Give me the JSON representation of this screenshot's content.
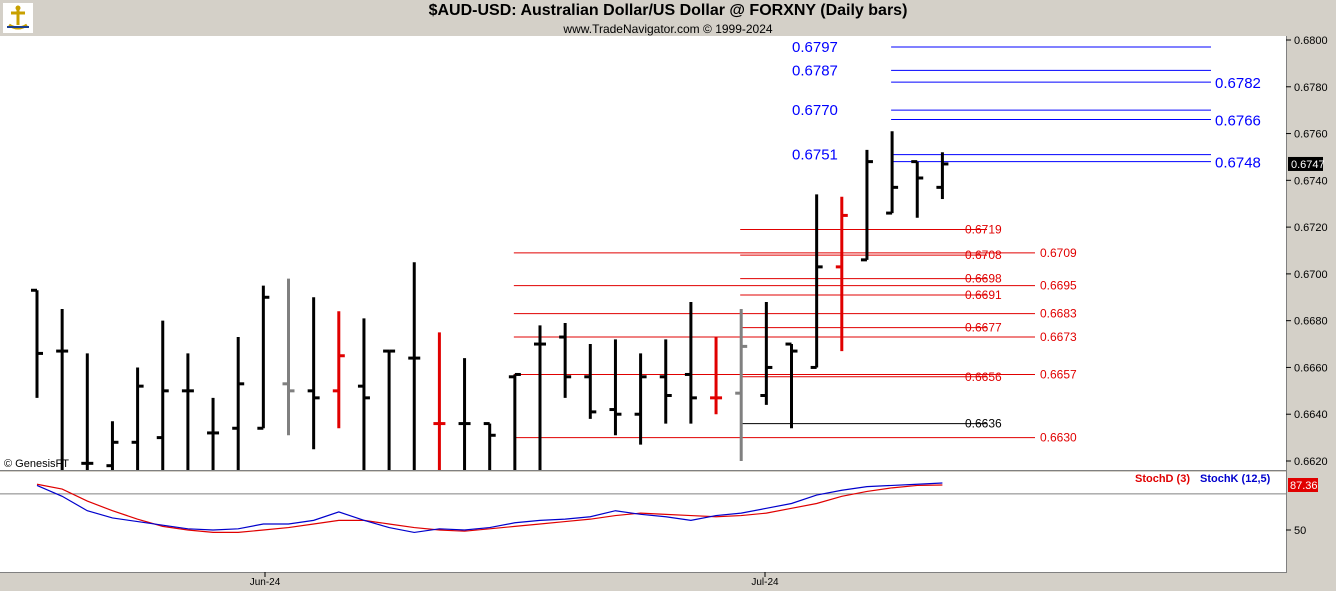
{
  "header": {
    "title": "$AUD-USD:  Australian Dollar/US Dollar @ FORXNY  (Daily bars)",
    "subtitle": "www.TradeNavigator.com © 1999-2024"
  },
  "watermark": "© GenesisFT",
  "logo_icon": "trade-navigator-logo-icon",
  "chart_data": [
    {
      "type": "ohlc",
      "panel": "price",
      "ylim": [
        0.6615,
        0.6805
      ],
      "y_ticks": [
        "0.6800",
        "0.6780",
        "0.6760",
        "0.6740",
        "0.6720",
        "0.6700",
        "0.6680",
        "0.6660",
        "0.6640",
        "0.6620"
      ],
      "x_tick_labels": [
        "Jun-24",
        "Jul-24"
      ],
      "last_price": "0.6747",
      "bars": [
        {
          "o": 0.6693,
          "h": 0.6693,
          "l": 0.6647,
          "c": 0.6666,
          "color": "#000000"
        },
        {
          "o": 0.6667,
          "h": 0.6685,
          "l": 0.6615,
          "c": 0.6667,
          "color": "#000000"
        },
        {
          "o": 0.6619,
          "h": 0.6666,
          "l": 0.6615,
          "c": 0.6619,
          "color": "#000000"
        },
        {
          "o": 0.6618,
          "h": 0.6637,
          "l": 0.6615,
          "c": 0.6628,
          "color": "#000000"
        },
        {
          "o": 0.6628,
          "h": 0.666,
          "l": 0.6615,
          "c": 0.6652,
          "color": "#000000"
        },
        {
          "o": 0.663,
          "h": 0.668,
          "l": 0.6615,
          "c": 0.665,
          "color": "#000000"
        },
        {
          "o": 0.665,
          "h": 0.6666,
          "l": 0.6615,
          "c": 0.665,
          "color": "#000000"
        },
        {
          "o": 0.6632,
          "h": 0.6647,
          "l": 0.6615,
          "c": 0.6632,
          "color": "#000000"
        },
        {
          "o": 0.6634,
          "h": 0.6673,
          "l": 0.6615,
          "c": 0.6653,
          "color": "#000000"
        },
        {
          "o": 0.6634,
          "h": 0.6695,
          "l": 0.6634,
          "c": 0.669,
          "color": "#000000"
        },
        {
          "o": 0.6653,
          "h": 0.6698,
          "l": 0.6631,
          "c": 0.665,
          "color": "#808080"
        },
        {
          "o": 0.665,
          "h": 0.669,
          "l": 0.6625,
          "c": 0.6647,
          "color": "#000000"
        },
        {
          "o": 0.665,
          "h": 0.6684,
          "l": 0.6634,
          "c": 0.6665,
          "color": "#e00000"
        },
        {
          "o": 0.6652,
          "h": 0.6681,
          "l": 0.6615,
          "c": 0.6647,
          "color": "#000000"
        },
        {
          "o": 0.6667,
          "h": 0.6667,
          "l": 0.6615,
          "c": 0.6667,
          "color": "#000000"
        },
        {
          "o": 0.6664,
          "h": 0.6705,
          "l": 0.6615,
          "c": 0.6664,
          "color": "#000000"
        },
        {
          "o": 0.6636,
          "h": 0.6675,
          "l": 0.6615,
          "c": 0.6636,
          "color": "#e00000"
        },
        {
          "o": 0.6636,
          "h": 0.6664,
          "l": 0.6615,
          "c": 0.6636,
          "color": "#000000"
        },
        {
          "o": 0.6636,
          "h": 0.6636,
          "l": 0.6615,
          "c": 0.6631,
          "color": "#000000"
        },
        {
          "o": 0.6656,
          "h": 0.6657,
          "l": 0.6615,
          "c": 0.6657,
          "color": "#000000"
        },
        {
          "o": 0.667,
          "h": 0.6678,
          "l": 0.6615,
          "c": 0.667,
          "color": "#000000"
        },
        {
          "o": 0.6673,
          "h": 0.6679,
          "l": 0.6647,
          "c": 0.6656,
          "color": "#000000"
        },
        {
          "o": 0.6656,
          "h": 0.667,
          "l": 0.6638,
          "c": 0.6641,
          "color": "#000000"
        },
        {
          "o": 0.6642,
          "h": 0.6672,
          "l": 0.6631,
          "c": 0.664,
          "color": "#000000"
        },
        {
          "o": 0.664,
          "h": 0.6666,
          "l": 0.6627,
          "c": 0.6656,
          "color": "#000000"
        },
        {
          "o": 0.6656,
          "h": 0.6672,
          "l": 0.6636,
          "c": 0.6648,
          "color": "#000000"
        },
        {
          "o": 0.6657,
          "h": 0.6688,
          "l": 0.6636,
          "c": 0.6647,
          "color": "#000000"
        },
        {
          "o": 0.6647,
          "h": 0.6673,
          "l": 0.664,
          "c": 0.6647,
          "color": "#e00000"
        },
        {
          "o": 0.6649,
          "h": 0.6685,
          "l": 0.662,
          "c": 0.6669,
          "color": "#808080"
        },
        {
          "o": 0.6648,
          "h": 0.6688,
          "l": 0.6644,
          "c": 0.666,
          "color": "#000000"
        },
        {
          "o": 0.667,
          "h": 0.667,
          "l": 0.6634,
          "c": 0.6667,
          "color": "#000000"
        },
        {
          "o": 0.666,
          "h": 0.6734,
          "l": 0.666,
          "c": 0.6703,
          "color": "#000000"
        },
        {
          "o": 0.6703,
          "h": 0.6733,
          "l": 0.6667,
          "c": 0.6725,
          "color": "#e00000"
        },
        {
          "o": 0.6706,
          "h": 0.6753,
          "l": 0.6706,
          "c": 0.6748,
          "color": "#000000"
        },
        {
          "o": 0.6726,
          "h": 0.6761,
          "l": 0.6726,
          "c": 0.6737,
          "color": "#000000"
        },
        {
          "o": 0.6748,
          "h": 0.6748,
          "l": 0.6724,
          "c": 0.6741,
          "color": "#000000"
        },
        {
          "o": 0.6737,
          "h": 0.6752,
          "l": 0.6732,
          "c": 0.6747,
          "color": "#000000"
        }
      ],
      "levels": [
        {
          "label": "0.6797",
          "value": 0.6797,
          "color": "#0000ff",
          "big": true,
          "side": "left",
          "start": 34
        },
        {
          "label": "0.6787",
          "value": 0.6787,
          "color": "#0000ff",
          "big": true,
          "side": "left",
          "start": 34
        },
        {
          "label": "0.6782",
          "value": 0.6782,
          "color": "#0000ff",
          "big": true,
          "side": "right",
          "start": 34
        },
        {
          "label": "0.6770",
          "value": 0.677,
          "color": "#0000ff",
          "big": true,
          "side": "left",
          "start": 34
        },
        {
          "label": "0.6766",
          "value": 0.6766,
          "color": "#0000ff",
          "big": true,
          "side": "right",
          "start": 34
        },
        {
          "label": "0.6751",
          "value": 0.6751,
          "color": "#0000ff",
          "big": true,
          "side": "left",
          "start": 34
        },
        {
          "label": "0.6748",
          "value": 0.6748,
          "color": "#0000ff",
          "big": true,
          "side": "right",
          "start": 34
        },
        {
          "label": "0.6719",
          "value": 0.6719,
          "color": "#e00000",
          "big": false,
          "side": "mid",
          "start": 28
        },
        {
          "label": "0.6708",
          "value": 0.6708,
          "color": "#e00000",
          "big": false,
          "side": "mid",
          "start": 28
        },
        {
          "label": "0.6709",
          "value": 0.6709,
          "color": "#e00000",
          "big": false,
          "side": "end",
          "start": 19
        },
        {
          "label": "0.6698",
          "value": 0.6698,
          "color": "#e00000",
          "big": false,
          "side": "mid",
          "start": 28
        },
        {
          "label": "0.6695",
          "value": 0.6695,
          "color": "#e00000",
          "big": false,
          "side": "end",
          "start": 19
        },
        {
          "label": "0.6691",
          "value": 0.6691,
          "color": "#e00000",
          "big": false,
          "side": "mid",
          "start": 28
        },
        {
          "label": "0.6683",
          "value": 0.6683,
          "color": "#e00000",
          "big": false,
          "side": "end",
          "start": 19
        },
        {
          "label": "0.6677",
          "value": 0.6677,
          "color": "#e00000",
          "big": false,
          "side": "mid",
          "start": 28
        },
        {
          "label": "0.6673",
          "value": 0.6673,
          "color": "#e00000",
          "big": false,
          "side": "end",
          "start": 19
        },
        {
          "label": "0.6656",
          "value": 0.6656,
          "color": "#e00000",
          "big": false,
          "side": "mid",
          "start": 28
        },
        {
          "label": "0.6657",
          "value": 0.6657,
          "color": "#e00000",
          "big": false,
          "side": "end",
          "start": 19
        },
        {
          "label": "0.6636",
          "value": 0.6636,
          "color": "#000000",
          "big": false,
          "side": "mid",
          "start": 28
        },
        {
          "label": "0.6630",
          "value": 0.663,
          "color": "#e00000",
          "big": false,
          "side": "end",
          "start": 19
        }
      ]
    },
    {
      "type": "line",
      "panel": "stochastic",
      "ylim": [
        0,
        100
      ],
      "y_ticks": [
        "50"
      ],
      "last_value": "87.36",
      "series": [
        {
          "name": "StochD (3)",
          "color": "#e00000",
          "values": [
            88,
            84,
            74,
            66,
            59,
            53,
            50,
            48,
            48,
            50,
            52,
            55,
            58,
            58,
            55,
            52,
            50,
            49,
            51,
            53,
            55,
            57,
            59,
            62,
            64,
            63,
            62,
            61,
            62,
            64,
            68,
            72,
            78,
            82,
            85,
            87,
            87.36
          ]
        },
        {
          "name": "StochK (12,5)",
          "color": "#0000cc",
          "values": [
            87,
            78,
            66,
            60,
            57,
            54,
            51,
            50,
            51,
            55,
            55,
            58,
            65,
            58,
            52,
            48,
            51,
            50,
            52,
            56,
            58,
            59,
            61,
            66,
            63,
            61,
            58,
            62,
            64,
            68,
            72,
            79,
            83,
            86,
            87,
            88,
            89
          ]
        }
      ]
    }
  ]
}
